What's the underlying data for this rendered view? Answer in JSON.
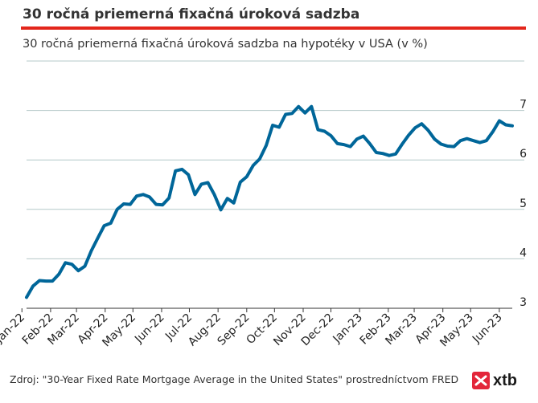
{
  "header": {
    "title": "30 ročná priemerná fixačná úroková sadzba",
    "subtitle": "30 ročná priemerná fixačná úroková sadzba na hypotéky v USA (v %)"
  },
  "footer": {
    "source": "Zdroj: \"30-Year Fixed Rate Mortgage Average in the United States\" prostredníctvom FRED",
    "logo_text": "xtb"
  },
  "colors": {
    "accent": "#e3261b",
    "line": "#006699",
    "grid": "#b4c8c8",
    "logo": "#e3263a"
  },
  "chart_data": {
    "type": "line",
    "ylim": [
      3,
      8
    ],
    "yticks": [
      3,
      4,
      5,
      6,
      7
    ],
    "grid": true,
    "y_axis_position": "right",
    "x_tick_labels": [
      "Jan-22",
      "Feb-22",
      "Mar-22",
      "Apr-22",
      "May-22",
      "Jun-22",
      "Jul-22",
      "Aug-22",
      "Sep-22",
      "Oct-22",
      "Nov-22",
      "Dec-22",
      "Jan-23",
      "Feb-23",
      "Mar-23",
      "Apr-23",
      "May-23",
      "Jun-23"
    ],
    "x": [
      "2022-01-06",
      "2022-01-13",
      "2022-01-20",
      "2022-01-27",
      "2022-02-03",
      "2022-02-10",
      "2022-02-17",
      "2022-02-24",
      "2022-03-03",
      "2022-03-10",
      "2022-03-17",
      "2022-03-24",
      "2022-03-31",
      "2022-04-07",
      "2022-04-14",
      "2022-04-21",
      "2022-04-28",
      "2022-05-05",
      "2022-05-12",
      "2022-05-19",
      "2022-05-26",
      "2022-06-02",
      "2022-06-09",
      "2022-06-16",
      "2022-06-23",
      "2022-06-30",
      "2022-07-07",
      "2022-07-14",
      "2022-07-21",
      "2022-07-28",
      "2022-08-04",
      "2022-08-11",
      "2022-08-18",
      "2022-08-25",
      "2022-09-01",
      "2022-09-08",
      "2022-09-15",
      "2022-09-22",
      "2022-09-29",
      "2022-10-06",
      "2022-10-13",
      "2022-10-20",
      "2022-10-27",
      "2022-11-03",
      "2022-11-10",
      "2022-11-17",
      "2022-11-24",
      "2022-12-01",
      "2022-12-08",
      "2022-12-15",
      "2022-12-22",
      "2022-12-29",
      "2023-01-05",
      "2023-01-12",
      "2023-01-19",
      "2023-01-26",
      "2023-02-02",
      "2023-02-09",
      "2023-02-16",
      "2023-02-23",
      "2023-03-02",
      "2023-03-09",
      "2023-03-16",
      "2023-03-23",
      "2023-03-30",
      "2023-04-06",
      "2023-04-13",
      "2023-04-20",
      "2023-04-27",
      "2023-05-04",
      "2023-05-11",
      "2023-05-18",
      "2023-05-25",
      "2023-06-01",
      "2023-06-08",
      "2023-06-15"
    ],
    "series": [
      {
        "values": [
          3.22,
          3.45,
          3.56,
          3.55,
          3.55,
          3.69,
          3.92,
          3.89,
          3.76,
          3.85,
          4.16,
          4.42,
          4.67,
          4.72,
          5.0,
          5.11,
          5.1,
          5.27,
          5.3,
          5.25,
          5.1,
          5.09,
          5.23,
          5.78,
          5.81,
          5.7,
          5.3,
          5.51,
          5.54,
          5.3,
          4.99,
          5.22,
          5.13,
          5.55,
          5.66,
          5.89,
          6.02,
          6.29,
          6.7,
          6.66,
          6.92,
          6.94,
          7.08,
          6.95,
          7.08,
          6.61,
          6.58,
          6.49,
          6.33,
          6.31,
          6.27,
          6.42,
          6.48,
          6.33,
          6.15,
          6.13,
          6.09,
          6.12,
          6.32,
          6.5,
          6.65,
          6.73,
          6.6,
          6.42,
          6.32,
          6.28,
          6.27,
          6.39,
          6.43,
          6.39,
          6.35,
          6.39,
          6.57,
          6.79,
          6.71,
          6.69
        ]
      }
    ]
  }
}
